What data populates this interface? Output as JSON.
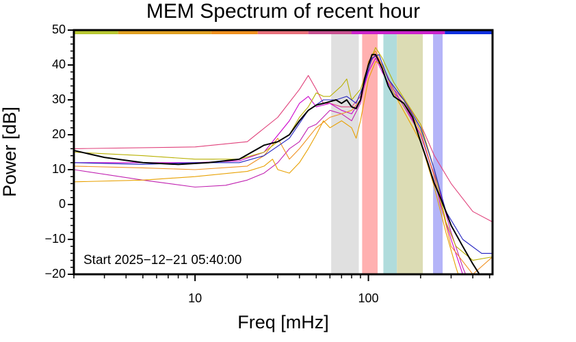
{
  "chart_data": {
    "type": "line",
    "title": "MEM Spectrum of recent hour",
    "xlabel": "Freq [mHz]",
    "ylabel": "Power [dB]",
    "annotation": "Start 2025−12−21 05:40:00",
    "xscale": "log",
    "xlim": [
      2,
      520
    ],
    "xticks": [
      10,
      100
    ],
    "xminorticks": [
      2,
      3,
      4,
      5,
      6,
      7,
      8,
      9,
      20,
      30,
      40,
      50,
      60,
      70,
      80,
      90,
      200,
      300,
      400,
      500
    ],
    "ylim": [
      -20,
      50
    ],
    "yticks": [
      {
        "value": -20,
        "label": "−20"
      },
      {
        "value": -10,
        "label": "−10"
      },
      0,
      10,
      20,
      30,
      40,
      50
    ],
    "yminorticks": [
      -18,
      -16,
      -14,
      -12,
      -8,
      -6,
      -4,
      -2,
      2,
      4,
      6,
      8,
      12,
      14,
      16,
      18,
      22,
      24,
      26,
      28,
      32,
      34,
      36,
      38,
      42,
      44,
      46,
      48
    ],
    "bands": [
      {
        "x": [
          61,
          88
        ],
        "color": "#e0e0e0"
      },
      {
        "x": [
          92,
          113
        ],
        "color": "#ffb0b0"
      },
      {
        "x": [
          122,
          146
        ],
        "color": "#b0dcdc"
      },
      {
        "x": [
          146,
          206
        ],
        "color": "#dcdcb4"
      },
      {
        "x": [
          236,
          268
        ],
        "color": "#b4b4f8"
      }
    ],
    "top_bar": [
      {
        "x": [
          2,
          3.6
        ],
        "color": "#b8c832"
      },
      {
        "x": [
          3.6,
          12.4
        ],
        "color": "#e0a020"
      },
      {
        "x": [
          12.4,
          23
        ],
        "color": "#f0901e"
      },
      {
        "x": [
          23,
          45
        ],
        "color": "#e8707a"
      },
      {
        "x": [
          45,
          80
        ],
        "color": "#c85090"
      },
      {
        "x": [
          80,
          276
        ],
        "color": "#cc22cc"
      },
      {
        "x": [
          276,
          520
        ],
        "color": "#1030e0"
      }
    ],
    "series": [
      {
        "color": "#e0407a",
        "x": [
          2,
          10,
          20,
          30,
          40,
          45,
          50,
          55,
          60,
          70,
          80,
          90,
          100,
          110,
          120,
          140,
          160,
          200,
          240,
          300,
          400,
          520
        ],
        "values": [
          16,
          16.5,
          18,
          25,
          33,
          37,
          33,
          29,
          29,
          28,
          28,
          31,
          40,
          43,
          40,
          33,
          30,
          23,
          14,
          6,
          -2,
          -5
        ]
      },
      {
        "color": "#cc00cc",
        "x": [
          2,
          5,
          10,
          18,
          25,
          35,
          40,
          45,
          50,
          60,
          70,
          80,
          90,
          100,
          110,
          120,
          140,
          160,
          200,
          240,
          260,
          300,
          350,
          400
        ],
        "values": [
          12,
          12,
          12,
          12.5,
          15,
          24,
          29,
          31,
          28,
          29,
          27,
          26,
          30,
          38,
          42,
          38,
          32,
          29,
          20,
          8,
          0,
          -10,
          -20,
          -25
        ]
      },
      {
        "color": "#c020b0",
        "x": [
          2,
          5,
          10,
          15,
          20,
          25,
          30,
          35,
          40,
          45,
          50,
          60,
          70,
          80,
          90,
          100,
          110,
          120,
          140,
          200,
          250,
          300,
          350,
          400
        ],
        "values": [
          10,
          7,
          5,
          5.5,
          7,
          9,
          12,
          16,
          18,
          22,
          23,
          27,
          26,
          24,
          29,
          40,
          43,
          40,
          33,
          20,
          6,
          -8,
          -18,
          -25
        ]
      },
      {
        "color": "#e8a000",
        "x": [
          2,
          5,
          10,
          20,
          25,
          28,
          30,
          35,
          40,
          45,
          50,
          55,
          60,
          70,
          80,
          85,
          90,
          100,
          110,
          120,
          140,
          200,
          240,
          280,
          320,
          350
        ],
        "values": [
          6.5,
          7,
          8,
          9.5,
          11,
          13,
          10,
          9,
          12,
          16,
          20,
          24,
          22,
          24,
          22,
          19,
          24,
          36,
          41,
          40,
          32,
          18,
          5,
          -8,
          -18,
          -24
        ]
      },
      {
        "color": "#f09020",
        "x": [
          2,
          5,
          10,
          20,
          25,
          30,
          35,
          40,
          50,
          60,
          70,
          80,
          90,
          100,
          110,
          130,
          160,
          200,
          240,
          300,
          400,
          520
        ],
        "values": [
          11,
          10.5,
          10,
          11,
          14,
          19,
          13,
          16,
          22,
          25,
          26,
          27,
          30,
          41,
          44,
          36,
          30,
          21,
          8,
          -12,
          -20,
          -15
        ]
      },
      {
        "color": "#b8b000",
        "x": [
          2,
          5,
          10,
          18,
          25,
          30,
          35,
          40,
          45,
          50,
          55,
          60,
          70,
          75,
          80,
          90,
          100,
          110,
          120,
          140,
          200,
          240,
          280,
          320,
          400,
          520
        ],
        "values": [
          15,
          14,
          13,
          13,
          15,
          18,
          20,
          25,
          28,
          32,
          31,
          31,
          34,
          36,
          30,
          33,
          40,
          45,
          42,
          35,
          23,
          10,
          -5,
          -12,
          -16,
          -15
        ]
      },
      {
        "color": "#2020c0",
        "x": [
          2,
          5,
          10,
          18,
          25,
          35,
          45,
          55,
          65,
          75,
          85,
          95,
          105,
          115,
          130,
          160,
          200,
          240,
          280,
          350,
          450,
          520
        ],
        "values": [
          12,
          11.5,
          12,
          12,
          14,
          19,
          27,
          30,
          30,
          31,
          29,
          35,
          42,
          43,
          36,
          30,
          22,
          10,
          -2,
          -10,
          -14,
          -14
        ]
      },
      {
        "color": "#000000",
        "x": [
          2,
          3,
          5,
          8,
          12,
          18,
          25,
          30,
          35,
          40,
          45,
          50,
          55,
          60,
          65,
          70,
          75,
          80,
          85,
          90,
          95,
          100,
          105,
          110,
          120,
          130,
          140,
          160,
          180,
          200,
          220,
          240,
          260,
          280,
          300,
          350,
          400,
          450
        ],
        "values": [
          15.5,
          13.5,
          12,
          11.5,
          12,
          13,
          17,
          18,
          20,
          24,
          27,
          28.5,
          29,
          29.5,
          30,
          29,
          30,
          28,
          27.5,
          30,
          36,
          40,
          43,
          43,
          39,
          34,
          31,
          29,
          25,
          18,
          12,
          6,
          2,
          -2,
          -6,
          -12,
          -17,
          -21
        ]
      }
    ]
  }
}
